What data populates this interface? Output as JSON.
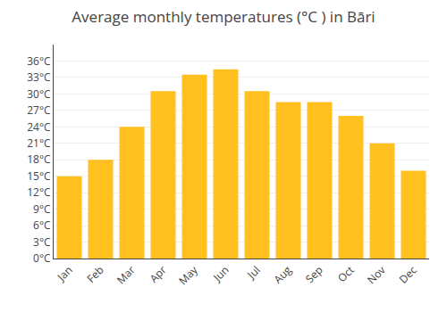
{
  "chart_data": {
    "type": "bar",
    "title": "Average monthly temperatures (°C ) in Bāri",
    "categories": [
      "Jan",
      "Feb",
      "Mar",
      "Apr",
      "May",
      "Jun",
      "Jul",
      "Aug",
      "Sep",
      "Oct",
      "Nov",
      "Dec"
    ],
    "values": [
      15,
      18,
      24,
      30.5,
      33.5,
      34.5,
      30.5,
      28.5,
      28.5,
      26,
      21,
      16
    ],
    "color": "#FFC020",
    "ylim": [
      0,
      39
    ],
    "yticks": [
      {
        "value": 0,
        "label": "0°C"
      },
      {
        "value": 3,
        "label": "3°C"
      },
      {
        "value": 6,
        "label": "6°C"
      },
      {
        "value": 9,
        "label": "9°C"
      },
      {
        "value": 12,
        "label": "12°C"
      },
      {
        "value": 15,
        "label": "15°C"
      },
      {
        "value": 18,
        "label": "18°C"
      },
      {
        "value": 21,
        "label": "21°C"
      },
      {
        "value": 24,
        "label": "24°C"
      },
      {
        "value": 27,
        "label": "27°C"
      },
      {
        "value": 30,
        "label": "30°C"
      },
      {
        "value": 33,
        "label": "33°C"
      },
      {
        "value": 36,
        "label": "36°C"
      }
    ],
    "grid": true
  }
}
